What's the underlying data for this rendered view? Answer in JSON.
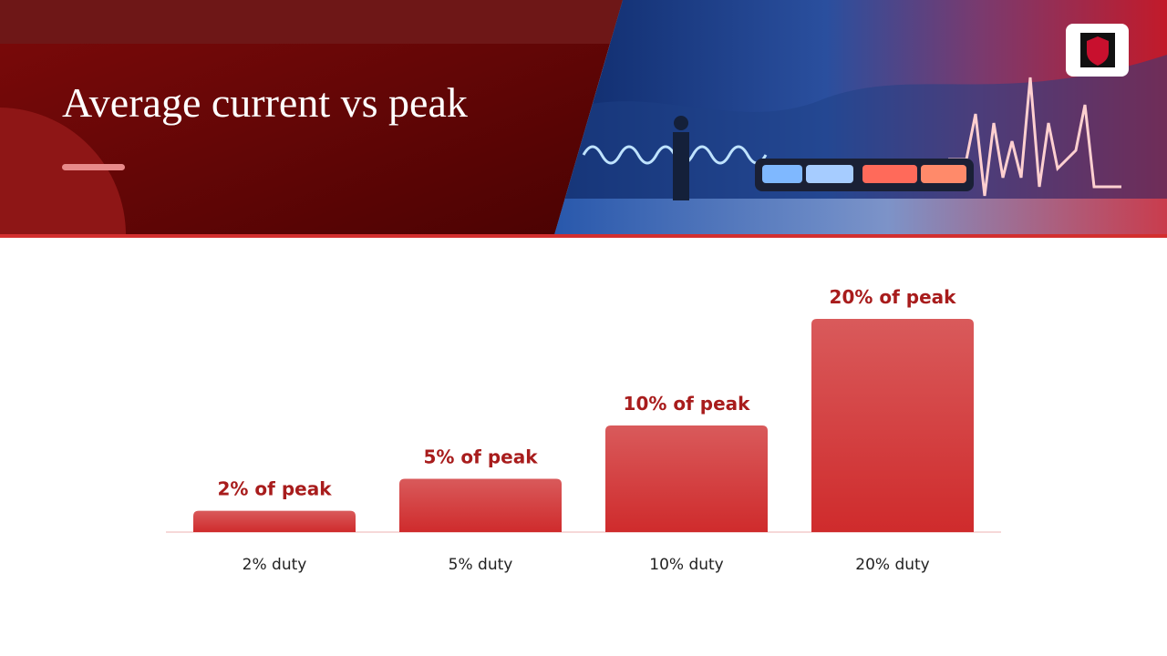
{
  "header": {
    "title": "Average current vs peak"
  },
  "chart_data": {
    "type": "bar",
    "categories": [
      "2% duty",
      "5% duty",
      "10% duty",
      "20% duty"
    ],
    "values": [
      2,
      5,
      10,
      20
    ],
    "value_labels": [
      "2% of peak",
      "5% of peak",
      "10% of peak",
      "20% of peak"
    ],
    "color": "#d63a3b"
  }
}
